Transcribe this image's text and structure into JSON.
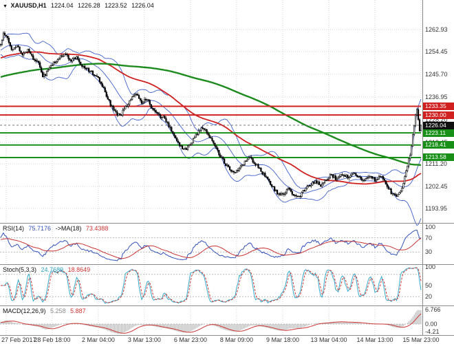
{
  "main_chart": {
    "header": {
      "marker": "▼",
      "symbol": "XAUUSD,H1",
      "open": "1224.04",
      "high": "1226.28",
      "low": "1223.52",
      "close": "1226.04"
    }
  },
  "rsi_panel": {
    "label": "RSI(14)",
    "value": "75.7176",
    "ma_label": "->MA(18)",
    "ma_value": "73.4388"
  },
  "stoch_panel": {
    "label": "Stoch(5,3,3)",
    "k_value": "24.7689",
    "d_value": "18.8649"
  },
  "macd_panel": {
    "label": "MACD(12,26,9)",
    "main_value": "5.258",
    "signal_value": "5.887"
  },
  "time_axis": {
    "labels": [
      "27 Feb 2017",
      "28 Feb 18:00",
      "2 Mar 04:00",
      "3 Mar 13:00",
      "6 Mar 23:00",
      "8 Mar 09:00",
      "9 Mar 18:00",
      "13 Mar 04:00",
      "14 Mar 13:00",
      "15 Mar 23:00"
    ]
  },
  "price_axis": {
    "gridline_labels": [
      "1262.93",
      "1254.45",
      "1245.70",
      "1236.95",
      "1228.20",
      "1219.45",
      "1211.20",
      "1202.45",
      "1193.95"
    ]
  },
  "colors": {
    "bollinger": "#4060c8",
    "ma_fast": "#d02020",
    "ma_slow": "#1c8a1c",
    "rsi": "#3050b8",
    "rsi_ma": "#c83232",
    "stoch_k": "#33aacc",
    "stoch_d": "#cc3333",
    "macd_hist": "#b4b4b4",
    "macd_signal": "#cc3333",
    "grid": "#d4d4d4",
    "level_dash": "#bbbbbb"
  },
  "chart_data": [
    {
      "type": "candlestick",
      "title": "XAUUSD H1 price chart",
      "symbol": "XAUUSD",
      "timeframe": "H1",
      "bars_total": 311,
      "volatility": 1.3,
      "current_bar": {
        "o": 1224.04,
        "h": 1226.28,
        "l": 1223.52,
        "c": 1226.04
      },
      "y_axis": {
        "min": 1188.9,
        "max": 1267.7,
        "gridlines": [
          1262.93,
          1254.45,
          1245.7,
          1236.95,
          1228.2,
          1219.45,
          1211.2,
          1202.45,
          1193.95
        ]
      },
      "levels": [
        {
          "price": 1233.35,
          "label": "1233.35",
          "color": "#d02020",
          "type": "resistance"
        },
        {
          "price": 1230.0,
          "label": "1230.00",
          "color": "#d02020",
          "type": "resistance"
        },
        {
          "price": 1226.04,
          "label": "1226.04",
          "color": "#101010",
          "type": "current-price"
        },
        {
          "price": 1223.11,
          "label": "1223.11",
          "color": "#189018",
          "type": "support"
        },
        {
          "price": 1218.41,
          "label": "1218.41",
          "color": "#189018",
          "type": "support"
        },
        {
          "price": 1213.58,
          "label": "1213.58",
          "color": "#189018",
          "type": "support"
        }
      ],
      "overlays": {
        "bollinger": {
          "period": 20,
          "deviation": 2
        },
        "ma_fast": {
          "period": 72
        },
        "ma_slow": {
          "period": 200
        }
      },
      "prehistory": {
        "bars": 200,
        "start": 1233.0,
        "end": 1256.0
      },
      "price_path": [
        [
          0,
          1257.0
        ],
        [
          2,
          1261.2
        ],
        [
          5,
          1259.5
        ],
        [
          8,
          1255.0
        ],
        [
          12,
          1257.0
        ],
        [
          16,
          1253.0
        ],
        [
          20,
          1255.5
        ],
        [
          24,
          1252.0
        ],
        [
          28,
          1250.0
        ],
        [
          31,
          1244.5
        ],
        [
          34,
          1246.5
        ],
        [
          38,
          1249.5
        ],
        [
          43,
          1252.0
        ],
        [
          48,
          1253.5
        ],
        [
          52,
          1251.0
        ],
        [
          56,
          1252.5
        ],
        [
          60,
          1249.0
        ],
        [
          64,
          1247.5
        ],
        [
          68,
          1246.0
        ],
        [
          72,
          1244.0
        ],
        [
          76,
          1240.0
        ],
        [
          80,
          1235.0
        ],
        [
          84,
          1231.0
        ],
        [
          88,
          1229.5
        ],
        [
          92,
          1233.0
        ],
        [
          96,
          1236.0
        ],
        [
          100,
          1238.0
        ],
        [
          104,
          1234.5
        ],
        [
          108,
          1236.5
        ],
        [
          112,
          1232.0
        ],
        [
          116,
          1230.0
        ],
        [
          120,
          1229.0
        ],
        [
          124,
          1226.0
        ],
        [
          128,
          1222.0
        ],
        [
          132,
          1218.5
        ],
        [
          136,
          1216.5
        ],
        [
          140,
          1219.0
        ],
        [
          144,
          1222.0
        ],
        [
          148,
          1225.0
        ],
        [
          152,
          1223.5
        ],
        [
          156,
          1220.0
        ],
        [
          160,
          1216.0
        ],
        [
          164,
          1212.5
        ],
        [
          168,
          1209.5
        ],
        [
          172,
          1207.5
        ],
        [
          176,
          1209.0
        ],
        [
          180,
          1212.0
        ],
        [
          184,
          1213.5
        ],
        [
          188,
          1211.0
        ],
        [
          192,
          1208.5
        ],
        [
          196,
          1205.5
        ],
        [
          200,
          1202.5
        ],
        [
          204,
          1200.0
        ],
        [
          208,
          1199.0
        ],
        [
          212,
          1201.5
        ],
        [
          216,
          1199.5
        ],
        [
          220,
          1198.5
        ],
        [
          224,
          1201.0
        ],
        [
          228,
          1203.0
        ],
        [
          232,
          1204.5
        ],
        [
          236,
          1203.0
        ],
        [
          240,
          1205.5
        ],
        [
          244,
          1207.0
        ],
        [
          248,
          1205.0
        ],
        [
          252,
          1207.5
        ],
        [
          256,
          1206.0
        ],
        [
          260,
          1208.0
        ],
        [
          264,
          1206.0
        ],
        [
          268,
          1204.5
        ],
        [
          272,
          1206.5
        ],
        [
          276,
          1205.0
        ],
        [
          280,
          1206.5
        ],
        [
          284,
          1204.0
        ],
        [
          288,
          1200.0
        ],
        [
          292,
          1198.5
        ],
        [
          296,
          1202.0
        ],
        [
          299,
          1208.0
        ],
        [
          302,
          1215.0
        ],
        [
          304,
          1222.0
        ],
        [
          306,
          1229.5
        ],
        [
          307,
          1232.6
        ],
        [
          308,
          1228.5
        ],
        [
          309,
          1224.0
        ],
        [
          310,
          1226.04
        ]
      ]
    },
    {
      "type": "line",
      "title": "RSI(14) with MA(18)",
      "period": 14,
      "ma_period": 18,
      "last_value": 75.7176,
      "ma_last_value": 73.4388,
      "range": [
        0,
        100
      ],
      "levels": [
        70,
        30
      ],
      "scale_labels": [
        "100",
        "70",
        "30"
      ],
      "scale_values": [
        100,
        70,
        30
      ]
    },
    {
      "type": "line",
      "title": "Stochastic (5,3,3)",
      "params": [
        5,
        3,
        3
      ],
      "k_last": 24.7689,
      "d_last": 18.8649,
      "range": [
        0,
        100
      ],
      "levels": [
        80,
        20
      ],
      "scale_labels": [
        "100",
        "50",
        "20"
      ],
      "scale_values": [
        100,
        50,
        20
      ]
    },
    {
      "type": "bar",
      "title": "MACD (12,26,9)",
      "params": [
        12,
        26,
        9
      ],
      "main_last": 5.258,
      "signal_last": 5.887,
      "scale_labels": [
        "6.766",
        "0.00",
        "-4.21"
      ],
      "scale_values": [
        6.766,
        0,
        -4.21
      ]
    }
  ]
}
